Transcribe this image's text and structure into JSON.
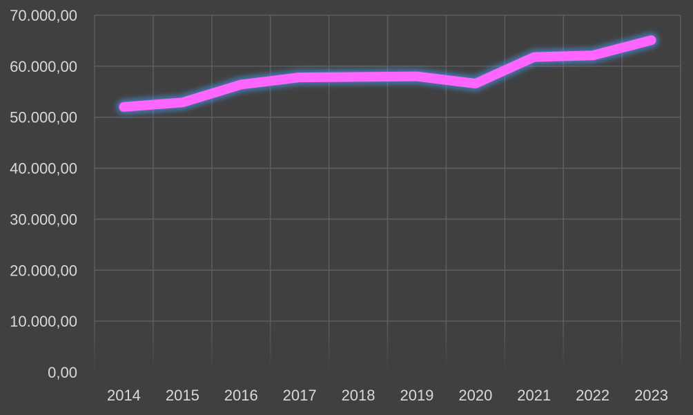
{
  "chart_data": {
    "type": "line",
    "title": "",
    "xlabel": "",
    "ylabel": "",
    "categories": [
      "2014",
      "2015",
      "2016",
      "2017",
      "2018",
      "2019",
      "2020",
      "2021",
      "2022",
      "2023"
    ],
    "y_ticks": [
      0,
      10000,
      20000,
      30000,
      40000,
      50000,
      60000,
      70000
    ],
    "y_tick_labels": [
      "0,00",
      "10.000,00",
      "20.000,00",
      "30.000,00",
      "40.000,00",
      "50.000,00",
      "60.000,00",
      "70.000,00"
    ],
    "ylim": [
      0,
      70000
    ],
    "grid": true,
    "legend": "none",
    "series": [
      {
        "values": [
          52000,
          52900,
          56400,
          57800,
          57900,
          58000,
          56600,
          61800,
          62100,
          65100
        ],
        "color": "#ff66ff"
      }
    ],
    "colors": {
      "background": "#404040",
      "grid": "#5e5e5e",
      "text": "#d9d9d9",
      "glow": "#4da6ff"
    }
  }
}
